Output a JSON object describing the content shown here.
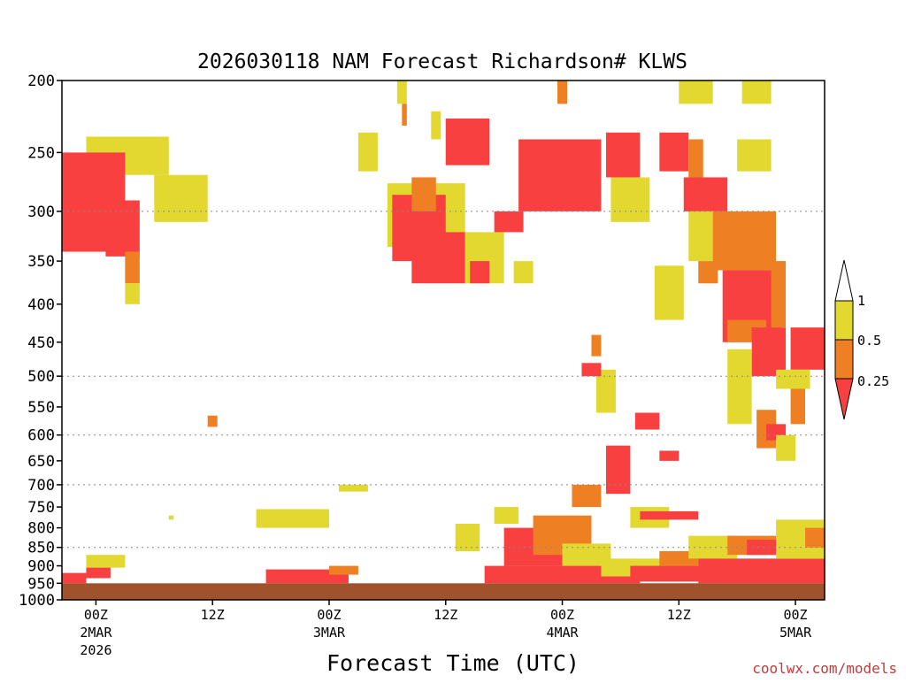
{
  "chart_data": {
    "type": "heatmap",
    "title": "2026030118 NAM Forecast Richardson# KLWS",
    "xlabel": "Forecast Time (UTC)",
    "credit": "coolwx.com/models",
    "y_axis": {
      "scale": "log-pressure",
      "range": [
        1000,
        200
      ],
      "ticks": [
        200,
        250,
        300,
        350,
        400,
        450,
        500,
        550,
        600,
        650,
        700,
        750,
        800,
        850,
        900,
        950,
        1000
      ],
      "dotted_gridlines": [
        300,
        500,
        600,
        700,
        850,
        1000
      ]
    },
    "x_axis": {
      "range_hours": [
        -3.5,
        75
      ],
      "ticks": [
        {
          "hour": 0,
          "label": "00Z",
          "sub1": "2MAR",
          "sub2": "2026"
        },
        {
          "hour": 12,
          "label": "12Z"
        },
        {
          "hour": 24,
          "label": "00Z",
          "sub1": "3MAR"
        },
        {
          "hour": 36,
          "label": "12Z"
        },
        {
          "hour": 48,
          "label": "00Z",
          "sub1": "4MAR"
        },
        {
          "hour": 60,
          "label": "12Z"
        },
        {
          "hour": 72,
          "label": "00Z",
          "sub1": "5MAR"
        }
      ]
    },
    "legend": {
      "placement": "right",
      "levels": [
        {
          "label": "1",
          "color": "#ffffff"
        },
        {
          "label": "0.5",
          "color": "#e3d830"
        },
        {
          "label": "0.25",
          "color": "#ee7f22"
        },
        {
          "color": "#f84040"
        }
      ]
    },
    "terrain": {
      "color": "#a0522d",
      "from_pressure": 950
    },
    "colors": {
      "red": "#f84040",
      "orange": "#ee7f22",
      "yellow": "#e3d830"
    },
    "regions": [
      {
        "category": "yellow",
        "hours": [
          -1.0,
          7.5
        ],
        "pressure": [
          238,
          268
        ]
      },
      {
        "category": "yellow",
        "hours": [
          6.0,
          11.5
        ],
        "pressure": [
          268,
          310
        ]
      },
      {
        "category": "red",
        "hours": [
          -3.5,
          3.0
        ],
        "pressure": [
          250,
          340
        ]
      },
      {
        "category": "red",
        "hours": [
          1.0,
          4.5
        ],
        "pressure": [
          290,
          345
        ]
      },
      {
        "category": "orange",
        "hours": [
          3.0,
          4.5
        ],
        "pressure": [
          340,
          375
        ]
      },
      {
        "category": "yellow",
        "hours": [
          3.0,
          4.5
        ],
        "pressure": [
          375,
          400
        ]
      },
      {
        "category": "red",
        "hours": [
          -3.5,
          -1.0
        ],
        "pressure": [
          920,
          950
        ]
      },
      {
        "category": "yellow",
        "hours": [
          -1.0,
          3.0
        ],
        "pressure": [
          870,
          905
        ]
      },
      {
        "category": "red",
        "hours": [
          -1.0,
          1.5
        ],
        "pressure": [
          905,
          935
        ]
      },
      {
        "category": "yellow",
        "hours": [
          7.5,
          8.0
        ],
        "pressure": [
          770,
          780
        ]
      },
      {
        "category": "orange",
        "hours": [
          11.5,
          12.5
        ],
        "pressure": [
          565,
          585
        ]
      },
      {
        "category": "yellow",
        "hours": [
          16.5,
          24.0
        ],
        "pressure": [
          755,
          800
        ]
      },
      {
        "category": "red",
        "hours": [
          17.5,
          26.0
        ],
        "pressure": [
          910,
          950
        ]
      },
      {
        "category": "orange",
        "hours": [
          24.0,
          27.0
        ],
        "pressure": [
          900,
          925
        ]
      },
      {
        "category": "yellow",
        "hours": [
          25.0,
          28.0
        ],
        "pressure": [
          700,
          715
        ]
      },
      {
        "category": "yellow",
        "hours": [
          27.0,
          29.0
        ],
        "pressure": [
          235,
          265
        ]
      },
      {
        "category": "yellow",
        "hours": [
          30.0,
          38.0
        ],
        "pressure": [
          275,
          335
        ]
      },
      {
        "category": "red",
        "hours": [
          30.5,
          36.0
        ],
        "pressure": [
          285,
          350
        ]
      },
      {
        "category": "orange",
        "hours": [
          32.5,
          35.0
        ],
        "pressure": [
          270,
          300
        ]
      },
      {
        "category": "red",
        "hours": [
          32.5,
          38.0
        ],
        "pressure": [
          320,
          375
        ]
      },
      {
        "category": "yellow",
        "hours": [
          31.0,
          32.0
        ],
        "pressure": [
          198,
          215
        ]
      },
      {
        "category": "orange",
        "hours": [
          31.5,
          32.0
        ],
        "pressure": [
          215,
          230
        ]
      },
      {
        "category": "yellow",
        "hours": [
          34.5,
          35.5
        ],
        "pressure": [
          220,
          240
        ]
      },
      {
        "category": "red",
        "hours": [
          36.0,
          40.5
        ],
        "pressure": [
          225,
          260
        ]
      },
      {
        "category": "yellow",
        "hours": [
          38.0,
          42.0
        ],
        "pressure": [
          320,
          375
        ]
      },
      {
        "category": "red",
        "hours": [
          38.5,
          40.5
        ],
        "pressure": [
          350,
          375
        ]
      },
      {
        "category": "red",
        "hours": [
          41.0,
          44.0
        ],
        "pressure": [
          300,
          320
        ]
      },
      {
        "category": "yellow",
        "hours": [
          43.0,
          45.0
        ],
        "pressure": [
          350,
          375
        ]
      },
      {
        "category": "red",
        "hours": [
          43.5,
          52.0
        ],
        "pressure": [
          240,
          300
        ]
      },
      {
        "category": "orange",
        "hours": [
          47.5,
          48.5
        ],
        "pressure": [
          198,
          215
        ]
      },
      {
        "category": "yellow",
        "hours": [
          53.0,
          57.0
        ],
        "pressure": [
          270,
          310
        ]
      },
      {
        "category": "red",
        "hours": [
          52.5,
          56.0
        ],
        "pressure": [
          235,
          270
        ]
      },
      {
        "category": "red",
        "hours": [
          58.0,
          61.0
        ],
        "pressure": [
          235,
          265
        ]
      },
      {
        "category": "orange",
        "hours": [
          61.0,
          62.5
        ],
        "pressure": [
          240,
          270
        ]
      },
      {
        "category": "yellow",
        "hours": [
          60.0,
          63.5
        ],
        "pressure": [
          198,
          215
        ]
      },
      {
        "category": "yellow",
        "hours": [
          66.5,
          69.5
        ],
        "pressure": [
          198,
          215
        ]
      },
      {
        "category": "yellow",
        "hours": [
          66.0,
          69.5
        ],
        "pressure": [
          240,
          265
        ]
      },
      {
        "category": "red",
        "hours": [
          60.5,
          65.0
        ],
        "pressure": [
          270,
          300
        ]
      },
      {
        "category": "yellow",
        "hours": [
          61.0,
          64.0
        ],
        "pressure": [
          300,
          350
        ]
      },
      {
        "category": "orange",
        "hours": [
          62.0,
          64.0
        ],
        "pressure": [
          350,
          375
        ]
      },
      {
        "category": "orange",
        "hours": [
          63.5,
          70.0
        ],
        "pressure": [
          300,
          360
        ]
      },
      {
        "category": "red",
        "hours": [
          64.5,
          70.5
        ],
        "pressure": [
          360,
          450
        ]
      },
      {
        "category": "orange",
        "hours": [
          65.0,
          69.0
        ],
        "pressure": [
          420,
          450
        ]
      },
      {
        "category": "yellow",
        "hours": [
          57.5,
          60.5
        ],
        "pressure": [
          355,
          420
        ]
      },
      {
        "category": "red",
        "hours": [
          67.5,
          71.0
        ],
        "pressure": [
          430,
          500
        ]
      },
      {
        "category": "orange",
        "hours": [
          69.5,
          71.0
        ],
        "pressure": [
          350,
          430
        ]
      },
      {
        "category": "red",
        "hours": [
          71.5,
          75.0
        ],
        "pressure": [
          430,
          490
        ]
      },
      {
        "category": "yellow",
        "hours": [
          70.0,
          73.5
        ],
        "pressure": [
          490,
          520
        ]
      },
      {
        "category": "orange",
        "hours": [
          68.0,
          70.0
        ],
        "pressure": [
          555,
          625
        ]
      },
      {
        "category": "yellow",
        "hours": [
          65.0,
          67.5
        ],
        "pressure": [
          460,
          580
        ]
      },
      {
        "category": "red",
        "hours": [
          69.0,
          71.0
        ],
        "pressure": [
          580,
          610
        ]
      },
      {
        "category": "orange",
        "hours": [
          71.5,
          73.0
        ],
        "pressure": [
          520,
          580
        ]
      },
      {
        "category": "yellow",
        "hours": [
          70.0,
          72.0
        ],
        "pressure": [
          600,
          650
        ]
      },
      {
        "category": "yellow",
        "hours": [
          51.5,
          53.5
        ],
        "pressure": [
          490,
          560
        ]
      },
      {
        "category": "red",
        "hours": [
          50.0,
          52.0
        ],
        "pressure": [
          480,
          500
        ]
      },
      {
        "category": "orange",
        "hours": [
          51.0,
          52.0
        ],
        "pressure": [
          440,
          470
        ]
      },
      {
        "category": "red",
        "hours": [
          52.5,
          55.0
        ],
        "pressure": [
          620,
          720
        ]
      },
      {
        "category": "orange",
        "hours": [
          49.0,
          52.0
        ],
        "pressure": [
          700,
          750
        ]
      },
      {
        "category": "red",
        "hours": [
          55.5,
          58.0
        ],
        "pressure": [
          560,
          590
        ]
      },
      {
        "category": "red",
        "hours": [
          58.0,
          60.0
        ],
        "pressure": [
          630,
          650
        ]
      },
      {
        "category": "yellow",
        "hours": [
          55.0,
          59.0
        ],
        "pressure": [
          750,
          800
        ]
      },
      {
        "category": "red",
        "hours": [
          56.0,
          62.0
        ],
        "pressure": [
          760,
          780
        ]
      },
      {
        "category": "yellow",
        "hours": [
          41.0,
          43.5
        ],
        "pressure": [
          750,
          790
        ]
      },
      {
        "category": "yellow",
        "hours": [
          37.0,
          39.5
        ],
        "pressure": [
          790,
          860
        ]
      },
      {
        "category": "red",
        "hours": [
          42.0,
          48.0
        ],
        "pressure": [
          800,
          900
        ]
      },
      {
        "category": "orange",
        "hours": [
          45.0,
          51.0
        ],
        "pressure": [
          770,
          870
        ]
      },
      {
        "category": "yellow",
        "hours": [
          48.0,
          53.0
        ],
        "pressure": [
          840,
          900
        ]
      },
      {
        "category": "red",
        "hours": [
          40.0,
          56.0
        ],
        "pressure": [
          900,
          950
        ]
      },
      {
        "category": "yellow",
        "hours": [
          52.0,
          62.0
        ],
        "pressure": [
          880,
          930
        ]
      },
      {
        "category": "red",
        "hours": [
          55.0,
          62.5
        ],
        "pressure": [
          900,
          945
        ]
      },
      {
        "category": "orange",
        "hours": [
          58.0,
          62.0
        ],
        "pressure": [
          860,
          900
        ]
      },
      {
        "category": "yellow",
        "hours": [
          61.0,
          66.0
        ],
        "pressure": [
          820,
          880
        ]
      },
      {
        "category": "red",
        "hours": [
          62.0,
          75.0
        ],
        "pressure": [
          880,
          950
        ]
      },
      {
        "category": "orange",
        "hours": [
          65.0,
          70.0
        ],
        "pressure": [
          820,
          870
        ]
      },
      {
        "category": "red",
        "hours": [
          67.0,
          71.0
        ],
        "pressure": [
          830,
          870
        ]
      },
      {
        "category": "yellow",
        "hours": [
          70.0,
          75.0
        ],
        "pressure": [
          780,
          880
        ]
      },
      {
        "category": "orange",
        "hours": [
          73.0,
          75.0
        ],
        "pressure": [
          800,
          850
        ]
      }
    ]
  }
}
